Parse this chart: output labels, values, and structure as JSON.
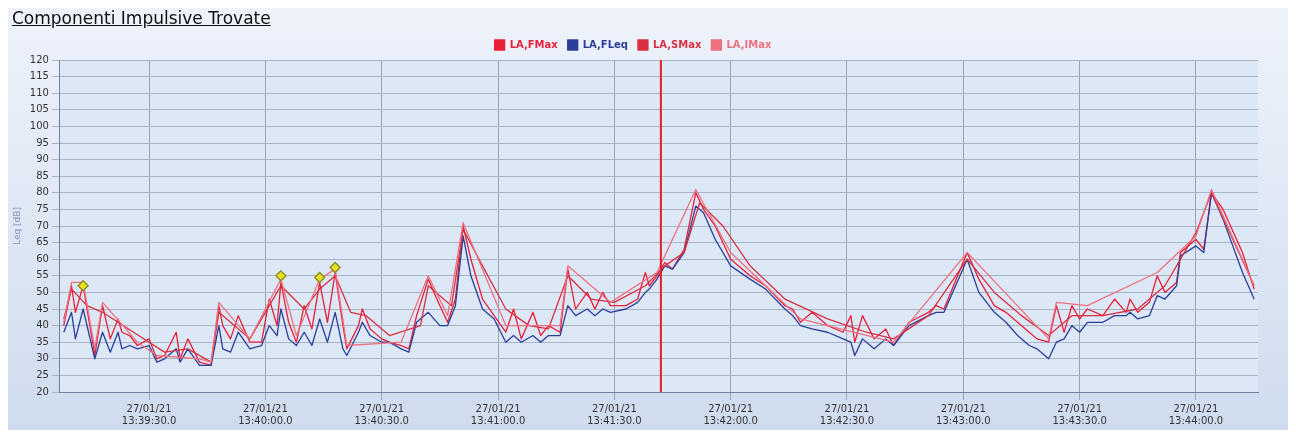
{
  "chart_data": {
    "type": "line",
    "title": "Componenti Impulsive Trovate",
    "ylabel": "Leq [dB]",
    "legend": "top",
    "grid": true,
    "xlim": [
      "--01-27T13:39:07",
      "--01-27T13:44:16"
    ],
    "xticks": [
      {
        "value": "--01-27T13:39:30",
        "label": "27/01/21\n13:39:30.0"
      },
      {
        "value": "--01-27T13:40:00",
        "label": "27/01/21\n13:40:00.0"
      },
      {
        "value": "--01-27T13:40:30",
        "label": "27/01/21\n13:40:30.0"
      },
      {
        "value": "--01-27T13:41:00",
        "label": "27/01/21\n13:41:00.0"
      },
      {
        "value": "--01-27T13:41:30",
        "label": "27/01/21\n13:41:30.0"
      },
      {
        "value": "--01-27T13:42:00",
        "label": "27/01/21\n13:42:00.0"
      },
      {
        "value": "--01-27T13:42:30",
        "label": "27/01/21\n13:42:30.0"
      },
      {
        "value": "--01-27T13:43:00",
        "label": "27/01/21\n13:43:00.0"
      },
      {
        "value": "--01-27T13:43:30",
        "label": "27/01/21\n13:43:30.0"
      },
      {
        "value": "--01-27T13:44:00",
        "label": "27/01/21\n13:44:00.0"
      }
    ],
    "ylim": [
      20,
      120
    ],
    "yticks": [
      20,
      25,
      30,
      35,
      40,
      45,
      50,
      55,
      60,
      65,
      70,
      75,
      80,
      85,
      90,
      95,
      100,
      105,
      110,
      115,
      120
    ],
    "ref_lines": [
      {
        "axis": "x",
        "value": "--01-27T13:41:42",
        "color": "#e02020"
      }
    ],
    "x": [
      "--01-27T13:39:08",
      "--01-27T13:39:10",
      "--01-27T13:39:11",
      "--01-27T13:39:13",
      "--01-27T13:39:15",
      "--01-27T13:39:16",
      "--01-27T13:39:18",
      "--01-27T13:39:20",
      "--01-27T13:39:22",
      "--01-27T13:39:23",
      "--01-27T13:39:25",
      "--01-27T13:39:27",
      "--01-27T13:39:30",
      "--01-27T13:39:32",
      "--01-27T13:39:34",
      "--01-27T13:39:37",
      "--01-27T13:39:38",
      "--01-27T13:39:40",
      "--01-27T13:39:43",
      "--01-27T13:39:46",
      "--01-27T13:39:48",
      "--01-27T13:39:49",
      "--01-27T13:39:51",
      "--01-27T13:39:53",
      "--01-27T13:39:56",
      "--01-27T13:39:59",
      "--01-27T13:40:01",
      "--01-27T13:40:03",
      "--01-27T13:40:04",
      "--01-27T13:40:06",
      "--01-27T13:40:08",
      "--01-27T13:40:10",
      "--01-27T13:40:12",
      "--01-27T13:40:14",
      "--01-27T13:40:16",
      "--01-27T13:40:18",
      "--01-27T13:40:20",
      "--01-27T13:40:21",
      "--01-27T13:40:24",
      "--01-27T13:40:25",
      "--01-27T13:40:27",
      "--01-27T13:40:30",
      "--01-27T13:40:32",
      "--01-27T13:40:35",
      "--01-27T13:40:37",
      "--01-27T13:40:39",
      "--01-27T13:40:42",
      "--01-27T13:40:45",
      "--01-27T13:40:47",
      "--01-27T13:40:49",
      "--01-27T13:40:51",
      "--01-27T13:40:53",
      "--01-27T13:40:56",
      "--01-27T13:40:59",
      "--01-27T13:41:02",
      "--01-27T13:41:04",
      "--01-27T13:41:06",
      "--01-27T13:41:09",
      "--01-27T13:41:11",
      "--01-27T13:41:13",
      "--01-27T13:41:16",
      "--01-27T13:41:18",
      "--01-27T13:41:20",
      "--01-27T13:41:23",
      "--01-27T13:41:25",
      "--01-27T13:41:27",
      "--01-27T13:41:29",
      "--01-27T13:41:33",
      "--01-27T13:41:36",
      "--01-27T13:41:38",
      "--01-27T13:41:39",
      "--01-27T13:41:41",
      "--01-27T13:41:43",
      "--01-27T13:41:45",
      "--01-27T13:41:48",
      "--01-27T13:41:51",
      "--01-27T13:41:53",
      "--01-27T13:41:56",
      "--01-27T13:42:00",
      "--01-27T13:42:05",
      "--01-27T13:42:09",
      "--01-27T13:42:14",
      "--01-27T13:42:16",
      "--01-27T13:42:18",
      "--01-27T13:42:21",
      "--01-27T13:42:25",
      "--01-27T13:42:29",
      "--01-27T13:42:31",
      "--01-27T13:42:32",
      "--01-27T13:42:34",
      "--01-27T13:42:37",
      "--01-27T13:42:40",
      "--01-27T13:42:42",
      "--01-27T13:42:46",
      "--01-27T13:42:51",
      "--01-27T13:42:53",
      "--01-27T13:42:55",
      "--01-27T13:43:01",
      "--01-27T13:43:04",
      "--01-27T13:43:08",
      "--01-27T13:43:11",
      "--01-27T13:43:14",
      "--01-27T13:43:17",
      "--01-27T13:43:19",
      "--01-27T13:43:22",
      "--01-27T13:43:24",
      "--01-27T13:43:26",
      "--01-27T13:43:28",
      "--01-27T13:43:30",
      "--01-27T13:43:32",
      "--01-27T13:43:36",
      "--01-27T13:43:39",
      "--01-27T13:43:42",
      "--01-27T13:43:43",
      "--01-27T13:43:45",
      "--01-27T13:43:48",
      "--01-27T13:43:50",
      "--01-27T13:43:52",
      "--01-27T13:43:55",
      "--01-27T13:43:56",
      "--01-27T13:44:00",
      "--01-27T13:44:02",
      "--01-27T13:44:04",
      "--01-27T13:44:07",
      "--01-27T13:44:12",
      "--01-27T13:44:15"
    ],
    "series": [
      {
        "name": "LA,FMax",
        "color": "#e8203a",
        "values": [
          40,
          52,
          44,
          52,
          38,
          31,
          46,
          36,
          42,
          38,
          37,
          34,
          36,
          30,
          31,
          38,
          30,
          36,
          29,
          28,
          46,
          40,
          36,
          43,
          35,
          35,
          48,
          40,
          53,
          41,
          35,
          46,
          39,
          53,
          41,
          56,
          40,
          33,
          40,
          45,
          39,
          36,
          35,
          34,
          33,
          43,
          54,
          46,
          41,
          48,
          70,
          60,
          48,
          43,
          38,
          45,
          36,
          44,
          37,
          40,
          38,
          57,
          45,
          50,
          45,
          50,
          46,
          46,
          48,
          56,
          52,
          55,
          59,
          57,
          63,
          80,
          75,
          70,
          60,
          55,
          52,
          46,
          45,
          41,
          44,
          40,
          38,
          43,
          35,
          43,
          36,
          39,
          34,
          41,
          44,
          46,
          45,
          62,
          54,
          46,
          44,
          41,
          38,
          36,
          35,
          46,
          38,
          46,
          42,
          45,
          43,
          48,
          44,
          48,
          44,
          47,
          55,
          50,
          53,
          62,
          66,
          63,
          80,
          75,
          62,
          51
        ]
      },
      {
        "name": "LA,FLeq",
        "color": "#2a3f9a",
        "values": [
          38,
          44,
          36,
          45,
          35,
          30,
          38,
          32,
          38,
          33,
          34,
          33,
          34,
          29,
          30,
          33,
          29,
          33,
          28,
          28,
          40,
          33,
          32,
          38,
          33,
          34,
          40,
          37,
          45,
          36,
          34,
          38,
          34,
          42,
          35,
          44,
          33,
          31,
          38,
          41,
          37,
          35,
          35,
          33,
          32,
          41,
          44,
          40,
          40,
          46,
          67,
          55,
          45,
          42,
          35,
          37,
          35,
          37,
          35,
          37,
          37,
          46,
          43,
          45,
          43,
          45,
          44,
          45,
          47,
          50,
          51,
          54,
          58,
          57,
          62,
          76,
          74,
          66,
          58,
          54,
          51,
          45,
          43,
          40,
          39,
          38,
          36,
          35,
          31,
          36,
          33,
          36,
          34,
          40,
          43,
          44,
          44,
          60,
          50,
          44,
          41,
          37,
          34,
          33,
          30,
          35,
          36,
          40,
          38,
          41,
          41,
          43,
          43,
          44,
          42,
          43,
          49,
          48,
          52,
          61,
          64,
          62,
          80,
          72,
          56,
          48
        ]
      },
      {
        "name": "LA,SMax",
        "color": "#d83040",
        "x": [
          "--01-27T13:39:08",
          "--01-27T13:39:10",
          "--01-27T13:39:14",
          "--01-27T13:39:18",
          "--01-27T13:39:22",
          "--01-27T13:39:26",
          "--01-27T13:39:30",
          "--01-27T13:39:34",
          "--01-27T13:39:40",
          "--01-27T13:39:46",
          "--01-27T13:39:48",
          "--01-27T13:39:52",
          "--01-27T13:39:56",
          "--01-27T13:40:01",
          "--01-27T13:40:04",
          "--01-27T13:40:10",
          "--01-27T13:40:14",
          "--01-27T13:40:18",
          "--01-27T13:40:22",
          "--01-27T13:40:26",
          "--01-27T13:40:32",
          "--01-27T13:40:40",
          "--01-27T13:40:42",
          "--01-27T13:40:48",
          "--01-27T13:40:51",
          "--01-27T13:40:56",
          "--01-27T13:41:02",
          "--01-27T13:41:08",
          "--01-27T13:41:13",
          "--01-27T13:41:18",
          "--01-27T13:41:24",
          "--01-27T13:41:30",
          "--01-27T13:41:38",
          "--01-27T13:41:43",
          "--01-27T13:41:48",
          "--01-27T13:41:52",
          "--01-27T13:41:58",
          "--01-27T13:42:05",
          "--01-27T13:42:14",
          "--01-27T13:42:25",
          "--01-27T13:42:35",
          "--01-27T13:42:42",
          "--01-27T13:42:51",
          "--01-27T13:43:01",
          "--01-27T13:43:08",
          "--01-27T13:43:15",
          "--01-27T13:43:22",
          "--01-27T13:43:28",
          "--01-27T13:43:36",
          "--01-27T13:43:45",
          "--01-27T13:43:52",
          "--01-27T13:44:00",
          "--01-27T13:44:04",
          "--01-27T13:44:15"
        ],
        "values": [
          42,
          51,
          46,
          44,
          41,
          38,
          35,
          32,
          33,
          29,
          44,
          40,
          36,
          46,
          52,
          45,
          51,
          55,
          44,
          43,
          37,
          40,
          52,
          46,
          69,
          58,
          45,
          40,
          39,
          55,
          48,
          47,
          52,
          58,
          62,
          77,
          70,
          58,
          48,
          42,
          38,
          36,
          43,
          60,
          50,
          43,
          37,
          43,
          43,
          45,
          52,
          68,
          80,
          52
        ]
      },
      {
        "name": "LA,IMax",
        "color": "#f07080",
        "x": [
          "--01-27T13:39:08",
          "--01-27T13:39:10",
          "--01-27T13:39:13",
          "--01-27T13:39:16",
          "--01-27T13:39:18",
          "--01-27T13:39:27",
          "--01-27T13:39:32",
          "--01-27T13:39:43",
          "--01-27T13:39:46",
          "--01-27T13:39:48",
          "--01-27T13:39:56",
          "--01-27T13:40:04",
          "--01-27T13:40:08",
          "--01-27T13:40:14",
          "--01-27T13:40:18",
          "--01-27T13:40:21",
          "--01-27T13:40:35",
          "--01-27T13:40:42",
          "--01-27T13:40:47",
          "--01-27T13:40:51",
          "--01-27T13:41:02",
          "--01-27T13:41:16",
          "--01-27T13:41:18",
          "--01-27T13:41:29",
          "--01-27T13:41:41",
          "--01-27T13:41:51",
          "--01-27T13:42:00",
          "--01-27T13:42:18",
          "--01-27T13:42:42",
          "--01-27T13:43:01",
          "--01-27T13:43:22",
          "--01-27T13:43:24",
          "--01-27T13:43:32",
          "--01-27T13:43:50",
          "--01-27T13:44:00",
          "--01-27T13:44:04",
          "--01-27T13:44:15"
        ],
        "values": [
          41,
          53,
          53,
          33,
          47,
          35,
          31,
          30,
          29,
          47,
          36,
          54,
          37,
          54,
          57,
          34,
          35,
          55,
          43,
          71,
          40,
          40,
          58,
          47,
          56,
          81,
          62,
          42,
          35,
          62,
          36,
          47,
          46,
          56,
          67,
          81,
          52
        ]
      },
      {
        "type": "scatter",
        "color": "#e8e020",
        "marker": "diamond",
        "x": [
          "--01-27T13:39:13",
          "--01-27T13:40:04",
          "--01-27T13:40:14",
          "--01-27T13:40:18"
        ],
        "values": [
          52,
          55,
          54.5,
          57.5
        ]
      }
    ]
  }
}
